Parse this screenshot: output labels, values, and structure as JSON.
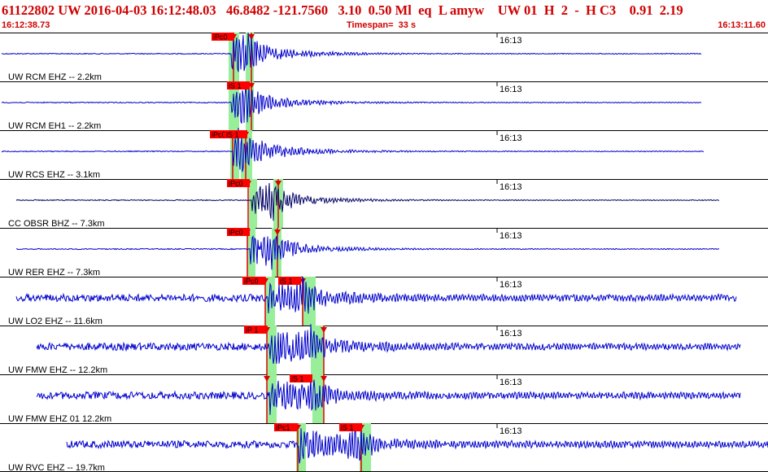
{
  "header": {
    "title_line": "61122802 UW 2016-04-03 16:12:48.03   46.8482 -121.7560   3.10  0.50 Ml  eq  L amyw    UW 01  H  2  -  H C3    0.91  2.19",
    "start_time": "16:12:38.73",
    "timespan": "Timespan=  33 s",
    "end_time": "16:13:11.60"
  },
  "colors": {
    "header_text": "#d00000",
    "trace": "#0000cc",
    "trace_dark": "#000066",
    "pick_bg": "#ff0000",
    "window": "#99ee99",
    "pick_line": "#e00000"
  },
  "minute_label": "16:13",
  "traces": [
    {
      "label": "UW RCM EHZ -- 2.2km",
      "picks": [
        "iPc0"
      ],
      "onset": 0.375,
      "amp": 0.8
    },
    {
      "label": "UW RCM EH1 -- 2.2km",
      "picks": [
        "iS 1"
      ],
      "onset": 0.385,
      "amp": 0.7
    },
    {
      "label": "UW RCS EHZ -- 3.1km",
      "picks": [
        "iPc0",
        "iS 1"
      ],
      "onset": 0.36,
      "amp": 0.85
    },
    {
      "label": "CC OBSR BHZ -- 7.3km",
      "picks": [
        "iPc0"
      ],
      "onset": 0.385,
      "amp": 0.75
    },
    {
      "label": "UW RER EHZ -- 7.3km",
      "picks": [
        "iPc0"
      ],
      "onset": 0.385,
      "amp": 0.8
    },
    {
      "label": "UW LO2 EHZ -- 11.6km",
      "picks": [
        "iPc0",
        "iS 1"
      ],
      "onset": 0.41,
      "amp": 0.75
    },
    {
      "label": "UW FMW EHZ -- 12.2km",
      "picks": [
        "iP 1"
      ],
      "onset": 0.415,
      "amp": 0.85
    },
    {
      "label": "UW FMW EHZ 01 12.2km",
      "picks": [
        "iS 1"
      ],
      "onset": 0.415,
      "amp": 0.8
    },
    {
      "label": "UW RVC EHZ -- 19.7km",
      "picks": [
        "iPc1",
        "iS 1"
      ],
      "onset": 0.46,
      "amp": 0.95
    }
  ]
}
